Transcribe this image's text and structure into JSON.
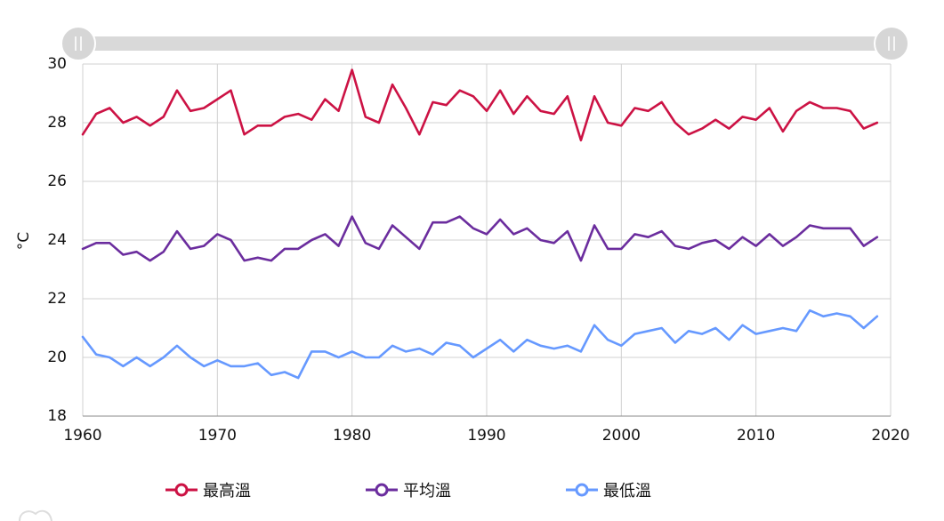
{
  "chart_data": {
    "type": "line",
    "ylabel": "°C",
    "xlabel": "",
    "x": [
      1960,
      1961,
      1962,
      1963,
      1964,
      1965,
      1966,
      1967,
      1968,
      1969,
      1970,
      1971,
      1972,
      1973,
      1974,
      1975,
      1976,
      1977,
      1978,
      1979,
      1980,
      1981,
      1982,
      1983,
      1984,
      1985,
      1986,
      1987,
      1988,
      1989,
      1990,
      1991,
      1992,
      1993,
      1994,
      1995,
      1996,
      1997,
      1998,
      1999,
      2000,
      2001,
      2002,
      2003,
      2004,
      2005,
      2006,
      2007,
      2008,
      2009,
      2010,
      2011,
      2012,
      2013,
      2014,
      2015,
      2016,
      2017,
      2018,
      2019
    ],
    "xlim": [
      1960,
      2020
    ],
    "ylim": [
      18,
      30
    ],
    "xticks": [
      1960,
      1970,
      1980,
      1990,
      2000,
      2010,
      2020
    ],
    "yticks": [
      18,
      20,
      22,
      24,
      26,
      28,
      30
    ],
    "grid": true,
    "legend_position": "bottom",
    "series": [
      {
        "name": "最高溫",
        "color": "#cc1244",
        "values": [
          27.6,
          28.3,
          28.5,
          28.0,
          28.2,
          27.9,
          28.2,
          29.1,
          28.4,
          28.5,
          28.8,
          29.1,
          27.6,
          27.9,
          27.9,
          28.2,
          28.3,
          28.1,
          28.8,
          28.4,
          29.8,
          28.2,
          28.0,
          29.3,
          28.5,
          27.6,
          28.7,
          28.6,
          29.1,
          28.9,
          28.4,
          29.1,
          28.3,
          28.9,
          28.4,
          28.3,
          28.9,
          27.4,
          28.9,
          28.0,
          27.9,
          28.5,
          28.4,
          28.7,
          28.0,
          27.6,
          27.8,
          28.1,
          27.8,
          28.2,
          28.1,
          28.5,
          27.7,
          28.4,
          28.7,
          28.5,
          28.5,
          28.4,
          27.8,
          28.0
        ]
      },
      {
        "name": "平均溫",
        "color": "#6b2d9e",
        "values": [
          23.7,
          23.9,
          23.9,
          23.5,
          23.6,
          23.3,
          23.6,
          24.3,
          23.7,
          23.8,
          24.2,
          24.0,
          23.3,
          23.4,
          23.3,
          23.7,
          23.7,
          24.0,
          24.2,
          23.8,
          24.8,
          23.9,
          23.7,
          24.5,
          24.1,
          23.7,
          24.6,
          24.6,
          24.8,
          24.4,
          24.2,
          24.7,
          24.2,
          24.4,
          24.0,
          23.9,
          24.3,
          23.3,
          24.5,
          23.7,
          23.7,
          24.2,
          24.1,
          24.3,
          23.8,
          23.7,
          23.9,
          24.0,
          23.7,
          24.1,
          23.8,
          24.2,
          23.8,
          24.1,
          24.5,
          24.4,
          24.4,
          24.4,
          23.8,
          24.1
        ]
      },
      {
        "name": "最低溫",
        "color": "#6699ff",
        "values": [
          20.7,
          20.1,
          20.0,
          19.7,
          20.0,
          19.7,
          20.0,
          20.4,
          20.0,
          19.7,
          19.9,
          19.7,
          19.7,
          19.8,
          19.4,
          19.5,
          19.3,
          20.2,
          20.2,
          20.0,
          20.2,
          20.0,
          20.0,
          20.4,
          20.2,
          20.3,
          20.1,
          20.5,
          20.4,
          20.0,
          20.3,
          20.6,
          20.2,
          20.6,
          20.4,
          20.3,
          20.4,
          20.2,
          21.1,
          20.6,
          20.4,
          20.8,
          20.9,
          21.0,
          20.5,
          20.9,
          20.8,
          21.0,
          20.6,
          21.1,
          20.8,
          20.9,
          21.0,
          20.9,
          21.6,
          21.4,
          21.5,
          21.4,
          21.0,
          21.4
        ]
      }
    ]
  }
}
